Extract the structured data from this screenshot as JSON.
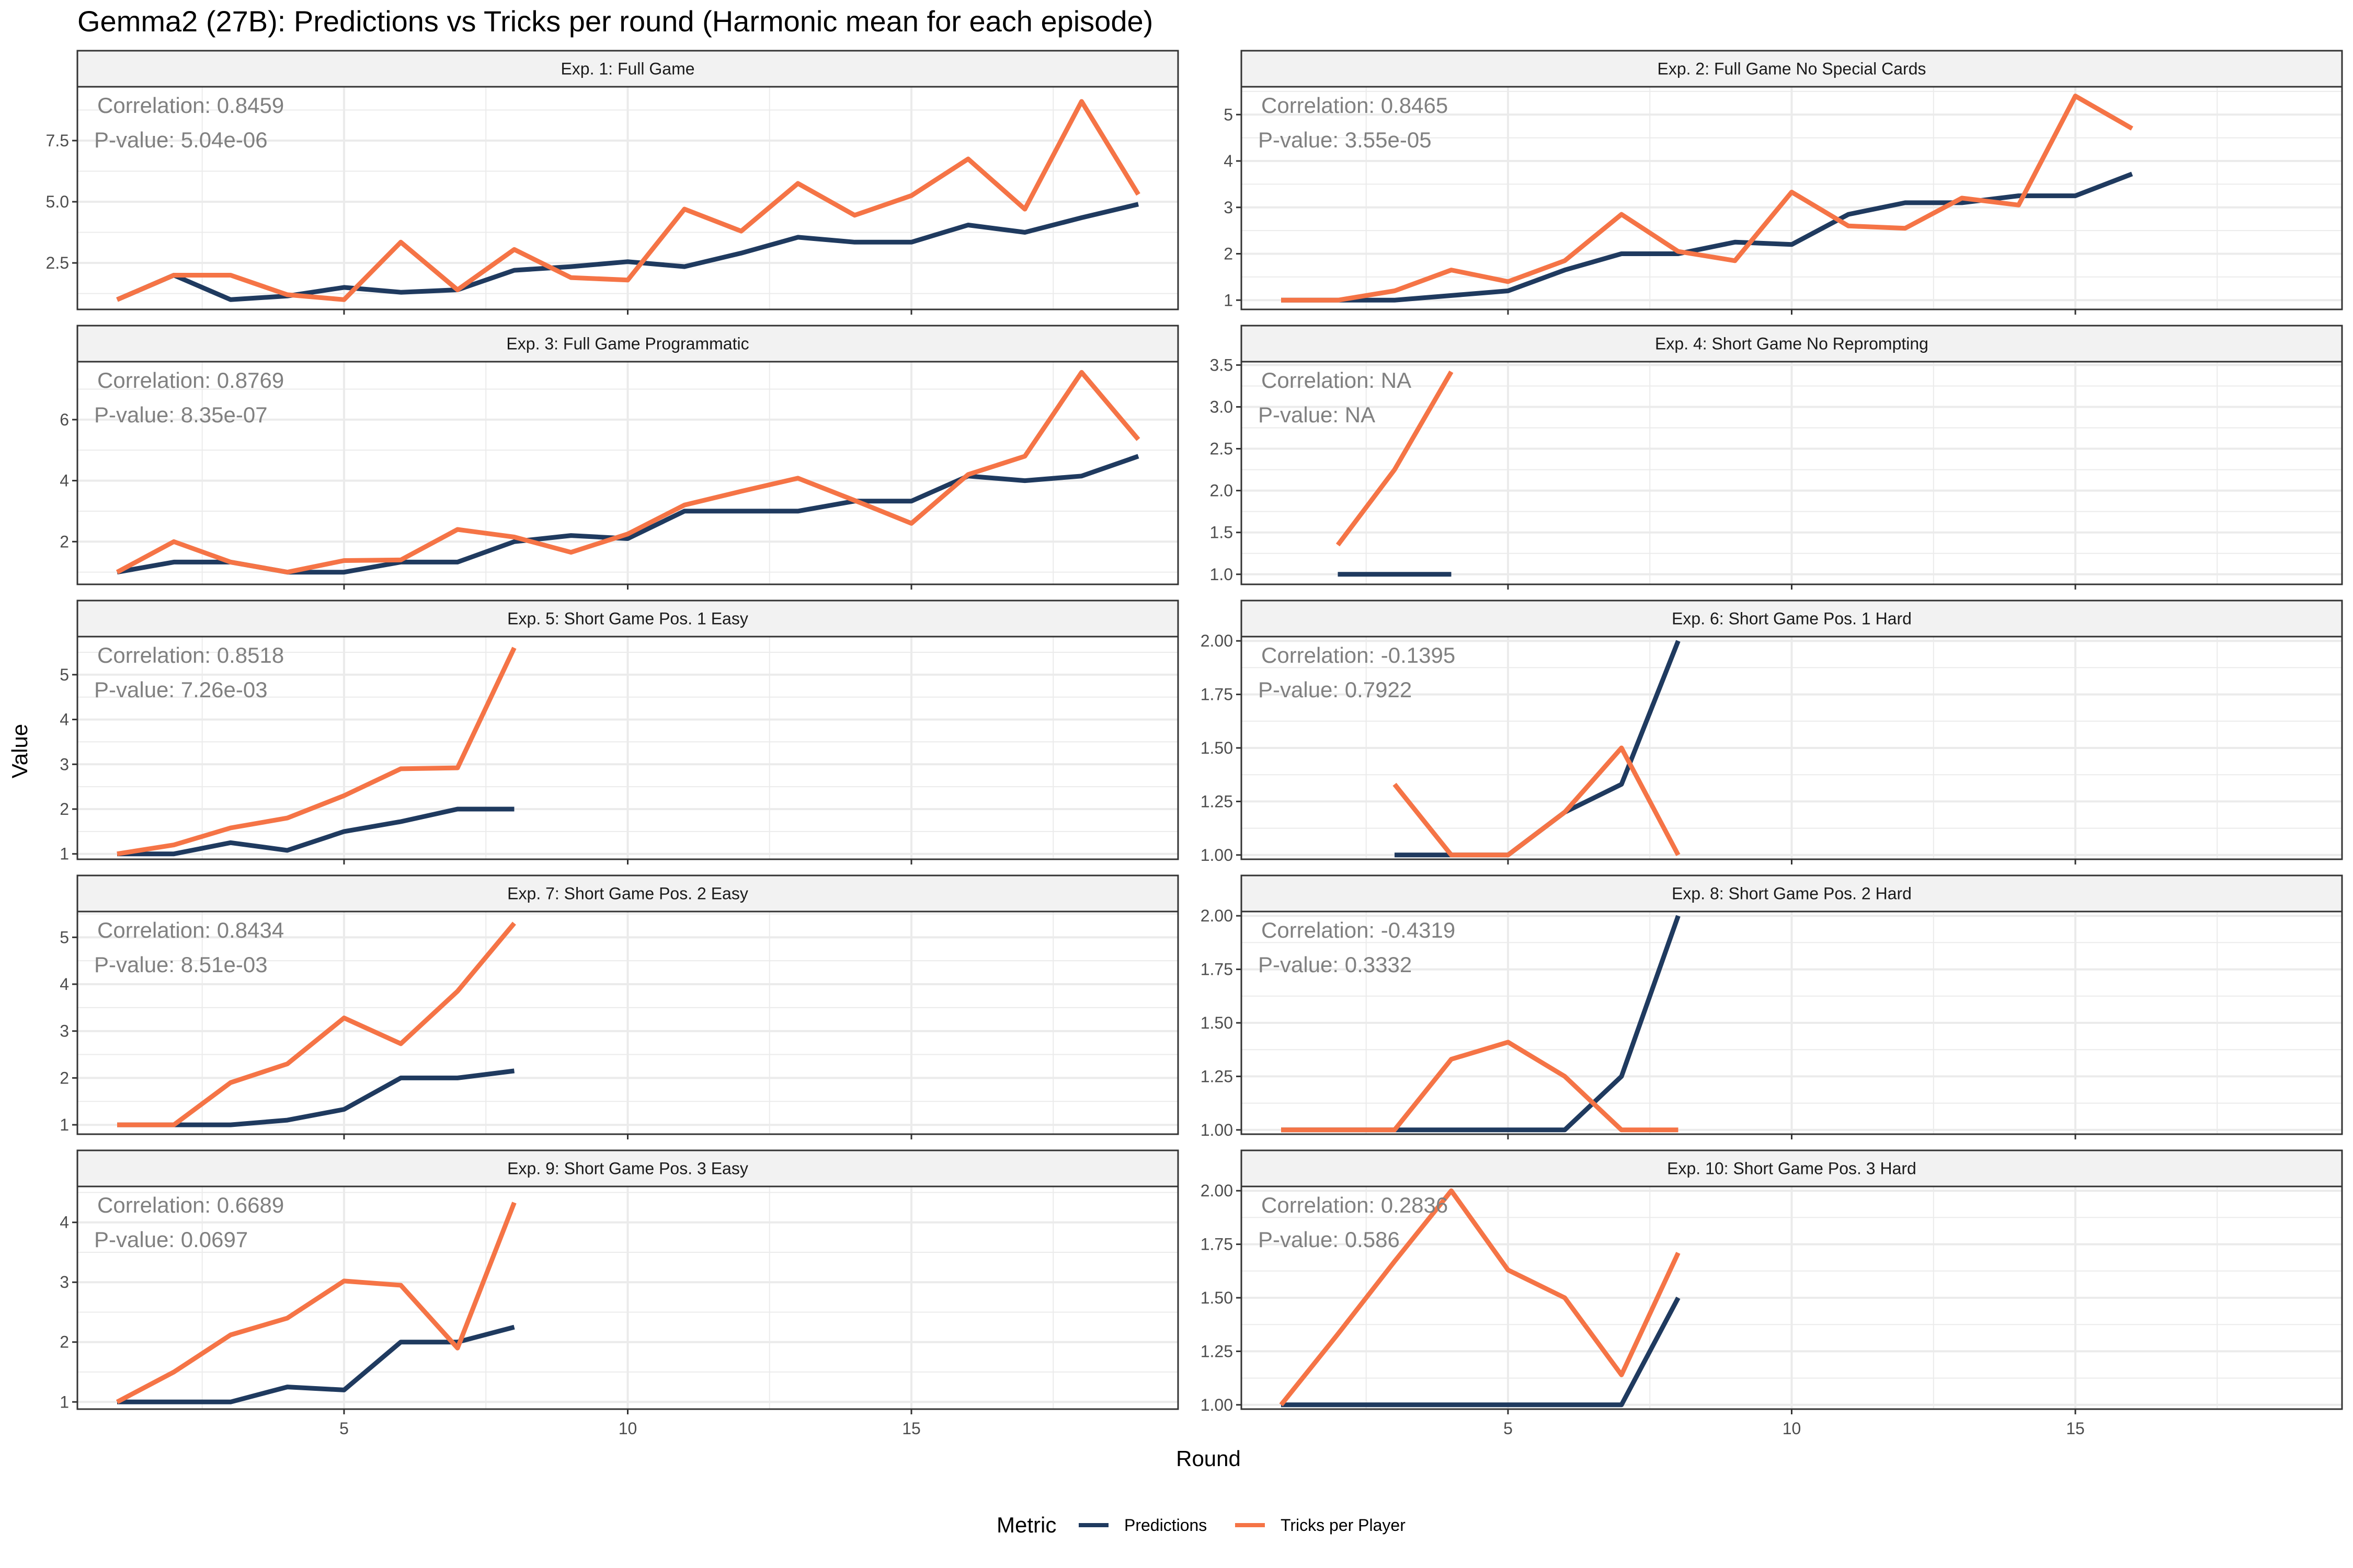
{
  "chart_data": {
    "type": "line",
    "title": "Gemma2 (27B): Predictions vs Tricks per round (Harmonic mean for each episode)",
    "xlabel": "Round",
    "ylabel": "Value",
    "x_ticks": [
      5,
      10,
      15
    ],
    "xlim": [
      0.3,
      19.7
    ],
    "grid": true,
    "legend": {
      "title": "Metric",
      "position": "bottom",
      "entries": [
        {
          "name": "Predictions",
          "color": "#1f3a5f"
        },
        {
          "name": "Tricks per Player",
          "color": "#f57446"
        }
      ]
    },
    "colors": {
      "Predictions": "#1f3a5f",
      "Tricks per Player": "#f57446"
    },
    "panels": [
      {
        "label": "Exp. 1: Full Game",
        "ylim": [
          0.6,
          9.7
        ],
        "y_ticks": [
          2.5,
          5.0,
          7.5
        ],
        "y_tick_labels": [
          "2.5",
          "5.0",
          "7.5"
        ],
        "correlation": "Correlation: 0.8459",
        "pvalue": "P-value: 5.04e-06",
        "series": [
          {
            "name": "Predictions",
            "x": [
              1,
              2,
              3,
              4,
              5,
              6,
              7,
              8,
              9,
              10,
              11,
              12,
              13,
              14,
              15,
              16,
              17,
              18,
              19
            ],
            "y": [
              1.0,
              2.0,
              1.0,
              1.15,
              1.5,
              1.3,
              1.4,
              2.2,
              2.35,
              2.55,
              2.35,
              2.9,
              3.55,
              3.35,
              3.35,
              4.05,
              3.75,
              4.35,
              4.9
            ]
          },
          {
            "name": "Tricks per Player",
            "x": [
              1,
              2,
              3,
              4,
              5,
              6,
              7,
              8,
              9,
              10,
              11,
              12,
              13,
              14,
              15,
              16,
              17,
              18,
              19
            ],
            "y": [
              1.0,
              2.0,
              2.0,
              1.2,
              1.0,
              3.35,
              1.4,
              3.05,
              1.9,
              1.8,
              4.7,
              3.8,
              5.75,
              4.45,
              5.25,
              6.75,
              4.7,
              9.1,
              5.3
            ]
          }
        ]
      },
      {
        "label": "Exp. 2: Full Game No Special Cards",
        "ylim": [
          0.8,
          5.6
        ],
        "y_ticks": [
          1,
          2,
          3,
          4,
          5
        ],
        "y_tick_labels": [
          "1",
          "2",
          "3",
          "4",
          "5"
        ],
        "correlation": "Correlation: 0.8465",
        "pvalue": "P-value: 3.55e-05",
        "series": [
          {
            "name": "Predictions",
            "x": [
              1,
              2,
              3,
              4,
              5,
              6,
              7,
              8,
              9,
              10,
              11,
              12,
              13,
              14,
              15,
              16
            ],
            "y": [
              1.0,
              1.0,
              1.0,
              1.1,
              1.2,
              1.65,
              2.0,
              2.0,
              2.25,
              2.2,
              2.85,
              3.1,
              3.1,
              3.25,
              3.25,
              3.72
            ]
          },
          {
            "name": "Tricks per Player",
            "x": [
              1,
              2,
              3,
              4,
              5,
              6,
              7,
              8,
              9,
              10,
              11,
              12,
              13,
              14,
              15,
              16
            ],
            "y": [
              1.0,
              1.0,
              1.2,
              1.65,
              1.4,
              1.85,
              2.85,
              2.05,
              1.85,
              3.33,
              2.6,
              2.55,
              3.2,
              3.05,
              5.4,
              4.7
            ]
          }
        ]
      },
      {
        "label": "Exp. 3: Full Game Programmatic",
        "ylim": [
          0.6,
          7.9
        ],
        "y_ticks": [
          2,
          4,
          6
        ],
        "y_tick_labels": [
          "2",
          "4",
          "6"
        ],
        "correlation": "Correlation: 0.8769",
        "pvalue": "P-value: 8.35e-07",
        "series": [
          {
            "name": "Predictions",
            "x": [
              1,
              2,
              3,
              4,
              5,
              6,
              7,
              8,
              9,
              10,
              11,
              12,
              13,
              14,
              15,
              16,
              17,
              18,
              19
            ],
            "y": [
              1.0,
              1.33,
              1.33,
              1.0,
              1.0,
              1.33,
              1.33,
              2.0,
              2.2,
              2.1,
              3.0,
              3.0,
              3.0,
              3.33,
              3.33,
              4.15,
              4.0,
              4.15,
              4.8
            ]
          },
          {
            "name": "Tricks per Player",
            "x": [
              1,
              2,
              3,
              4,
              5,
              6,
              7,
              8,
              9,
              10,
              11,
              12,
              13,
              14,
              15,
              16,
              17,
              18,
              19
            ],
            "y": [
              1.0,
              2.0,
              1.33,
              1.0,
              1.38,
              1.4,
              2.4,
              2.15,
              1.65,
              2.25,
              3.2,
              3.65,
              4.08,
              3.35,
              2.6,
              4.2,
              4.8,
              7.55,
              5.35
            ]
          }
        ]
      },
      {
        "label": "Exp. 4: Short Game No Reprompting",
        "ylim": [
          0.88,
          3.54
        ],
        "y_ticks": [
          1.0,
          1.5,
          2.0,
          2.5,
          3.0,
          3.5
        ],
        "y_tick_labels": [
          "1.0",
          "1.5",
          "2.0",
          "2.5",
          "3.0",
          "3.5"
        ],
        "correlation": "Correlation: NA",
        "pvalue": "P-value: NA",
        "series": [
          {
            "name": "Predictions",
            "x": [
              2,
              3,
              4
            ],
            "y": [
              1.0,
              1.0,
              1.0
            ]
          },
          {
            "name": "Tricks per Player",
            "x": [
              2,
              3,
              4
            ],
            "y": [
              1.35,
              2.25,
              3.42
            ]
          }
        ]
      },
      {
        "label": "Exp. 5: Short Game Pos. 1 Easy",
        "ylim": [
          0.88,
          5.85
        ],
        "y_ticks": [
          1,
          2,
          3,
          4,
          5
        ],
        "y_tick_labels": [
          "1",
          "2",
          "3",
          "4",
          "5"
        ],
        "correlation": "Correlation: 0.8518",
        "pvalue": "P-value: 7.26e-03",
        "series": [
          {
            "name": "Predictions",
            "x": [
              1,
              2,
              3,
              4,
              5,
              6,
              7,
              8
            ],
            "y": [
              1.0,
              1.0,
              1.25,
              1.08,
              1.5,
              1.72,
              2.0,
              2.0
            ]
          },
          {
            "name": "Tricks per Player",
            "x": [
              1,
              2,
              3,
              4,
              5,
              6,
              7,
              8
            ],
            "y": [
              1.0,
              1.2,
              1.58,
              1.8,
              2.3,
              2.9,
              2.92,
              5.6
            ]
          }
        ]
      },
      {
        "label": "Exp. 6: Short Game Pos. 1 Hard",
        "ylim": [
          0.98,
          2.02
        ],
        "y_ticks": [
          1.0,
          1.25,
          1.5,
          1.75,
          2.0
        ],
        "y_tick_labels": [
          "1.00",
          "1.25",
          "1.50",
          "1.75",
          "2.00"
        ],
        "correlation": "Correlation: -0.1395",
        "pvalue": "P-value: 0.7922",
        "series": [
          {
            "name": "Predictions",
            "x": [
              3,
              4,
              5,
              6,
              7,
              8
            ],
            "y": [
              1.0,
              1.0,
              1.0,
              1.2,
              1.33,
              2.0
            ]
          },
          {
            "name": "Tricks per Player",
            "x": [
              3,
              4,
              5,
              6,
              7,
              8
            ],
            "y": [
              1.33,
              1.0,
              1.0,
              1.2,
              1.5,
              1.0
            ]
          }
        ]
      },
      {
        "label": "Exp. 7: Short Game Pos. 2 Easy",
        "ylim": [
          0.8,
          5.55
        ],
        "y_ticks": [
          1,
          2,
          3,
          4,
          5
        ],
        "y_tick_labels": [
          "1",
          "2",
          "3",
          "4",
          "5"
        ],
        "correlation": "Correlation: 0.8434",
        "pvalue": "P-value: 8.51e-03",
        "series": [
          {
            "name": "Predictions",
            "x": [
              1,
              2,
              3,
              4,
              5,
              6,
              7,
              8
            ],
            "y": [
              1.0,
              1.0,
              1.0,
              1.1,
              1.33,
              2.0,
              2.0,
              2.15
            ]
          },
          {
            "name": "Tricks per Player",
            "x": [
              1,
              2,
              3,
              4,
              5,
              6,
              7,
              8
            ],
            "y": [
              1.0,
              1.0,
              1.9,
              2.3,
              3.28,
              2.73,
              3.85,
              5.3
            ]
          }
        ]
      },
      {
        "label": "Exp. 8: Short Game Pos. 2 Hard",
        "ylim": [
          0.98,
          2.02
        ],
        "y_ticks": [
          1.0,
          1.25,
          1.5,
          1.75,
          2.0
        ],
        "y_tick_labels": [
          "1.00",
          "1.25",
          "1.50",
          "1.75",
          "2.00"
        ],
        "correlation": "Correlation: -0.4319",
        "pvalue": "P-value: 0.3332",
        "series": [
          {
            "name": "Predictions",
            "x": [
              1,
              2,
              3,
              4,
              5,
              6,
              7,
              8
            ],
            "y": [
              1.0,
              1.0,
              1.0,
              1.0,
              1.0,
              1.0,
              1.25,
              2.0
            ]
          },
          {
            "name": "Tricks per Player",
            "x": [
              1,
              2,
              3,
              4,
              5,
              6,
              7,
              8
            ],
            "y": [
              1.0,
              1.0,
              1.0,
              1.33,
              1.41,
              1.25,
              1.0,
              1.0
            ]
          }
        ]
      },
      {
        "label": "Exp. 9: Short Game Pos. 3 Easy",
        "ylim": [
          0.88,
          4.6
        ],
        "y_ticks": [
          1,
          2,
          3,
          4
        ],
        "y_tick_labels": [
          "1",
          "2",
          "3",
          "4"
        ],
        "correlation": "Correlation: 0.6689",
        "pvalue": "P-value: 0.0697",
        "series": [
          {
            "name": "Predictions",
            "x": [
              1,
              2,
              3,
              4,
              5,
              6,
              7,
              8
            ],
            "y": [
              1.0,
              1.0,
              1.0,
              1.25,
              1.2,
              2.0,
              2.0,
              2.25
            ]
          },
          {
            "name": "Tricks per Player",
            "x": [
              1,
              2,
              3,
              4,
              5,
              6,
              7,
              8
            ],
            "y": [
              1.0,
              1.5,
              2.12,
              2.4,
              3.02,
              2.95,
              1.9,
              4.33
            ]
          }
        ]
      },
      {
        "label": "Exp. 10: Short Game Pos. 3 Hard",
        "ylim": [
          0.98,
          2.02
        ],
        "y_ticks": [
          1.0,
          1.25,
          1.5,
          1.75,
          2.0
        ],
        "y_tick_labels": [
          "1.00",
          "1.25",
          "1.50",
          "1.75",
          "2.00"
        ],
        "correlation": "Correlation: 0.2836",
        "pvalue": "P-value: 0.586",
        "series": [
          {
            "name": "Predictions",
            "x": [
              1,
              2,
              3,
              4,
              5,
              6,
              7,
              8
            ],
            "y": [
              1.0,
              1.0,
              1.0,
              1.0,
              1.0,
              1.0,
              1.0,
              1.5
            ]
          },
          {
            "name": "Tricks per Player",
            "x": [
              1,
              2,
              3,
              4,
              5,
              6,
              7,
              8
            ],
            "y": [
              1.0,
              1.33,
              1.67,
              2.0,
              1.63,
              1.5,
              1.14,
              1.71
            ]
          }
        ]
      }
    ]
  }
}
